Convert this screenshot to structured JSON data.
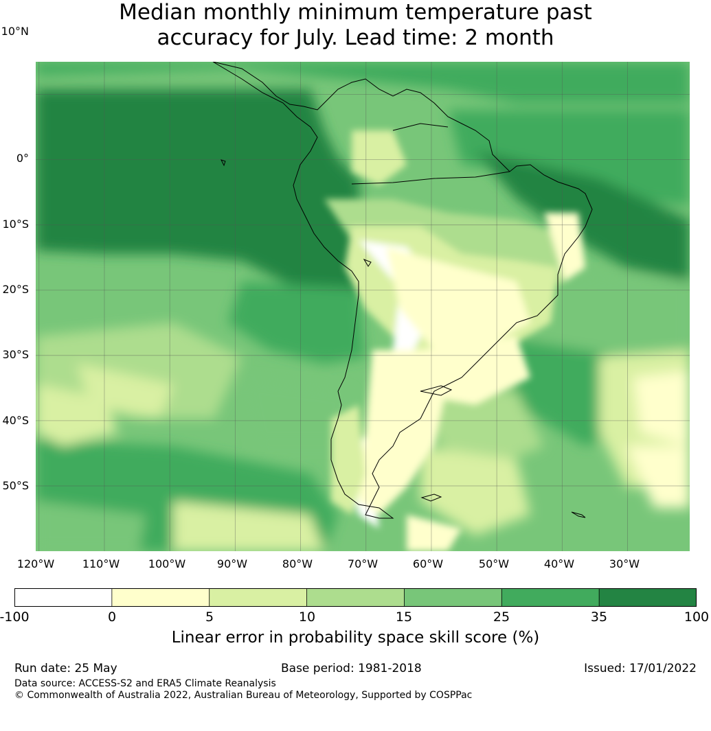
{
  "title": {
    "line1": "Median monthly minimum temperature past",
    "line2": "accuracy for July. Lead time: 2 month"
  },
  "map": {
    "lat_labels": [
      "10°N",
      "0°",
      "10°S",
      "20°S",
      "30°S",
      "40°S",
      "50°S"
    ],
    "lon_labels": [
      "120°W",
      "110°W",
      "100°W",
      "90°W",
      "80°W",
      "70°W",
      "60°W",
      "50°W",
      "40°W",
      "30°W"
    ],
    "region": "South America and surrounding oceans",
    "extent": {
      "lon_min": -120.5,
      "lon_max": -20.5,
      "lat_min": -60,
      "lat_max": 15
    },
    "colors": {
      "land_border": "#000000",
      "grid": "#555555"
    }
  },
  "colorbar": {
    "ticks": [
      "-100",
      "0",
      "5",
      "10",
      "15",
      "25",
      "35",
      "100"
    ],
    "bins": [
      {
        "range": "-100 to 0",
        "color": "#ffffff"
      },
      {
        "range": "0 to 5",
        "color": "#ffffcc"
      },
      {
        "range": "5 to 10",
        "color": "#d9f0a3"
      },
      {
        "range": "10 to 15",
        "color": "#addd8e"
      },
      {
        "range": "15 to 25",
        "color": "#78c679"
      },
      {
        "range": "25 to 35",
        "color": "#41ab5d"
      },
      {
        "range": "35 to 100",
        "color": "#238443"
      }
    ],
    "label": "Linear error in probability space skill score (%)"
  },
  "footer": {
    "run_date": "Run date: 25 May",
    "base_period": "Base period: 1981-2018",
    "issued": "Issued: 17/01/2022",
    "data_source": "Data source: ACCESS-S2 and ERA5 Climate Reanalysis",
    "copyright": "© Commonwealth of Australia 2022, Australian Bureau of Meteorology, Supported by COSPPac"
  }
}
